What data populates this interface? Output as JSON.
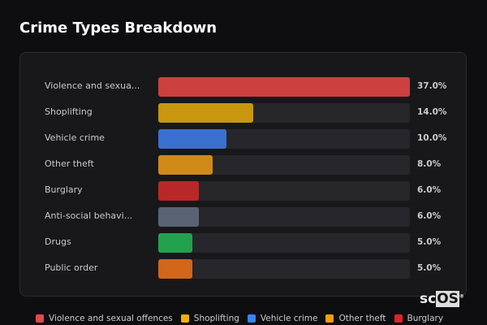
{
  "chart_data": {
    "type": "bar",
    "orientation": "horizontal",
    "title": "Crime Types Breakdown",
    "categories": [
      "Violence and sexua...",
      "Shoplifting",
      "Vehicle crime",
      "Other theft",
      "Burglary",
      "Anti-social behavi...",
      "Drugs",
      "Public order"
    ],
    "values": [
      37.0,
      14.0,
      10.0,
      8.0,
      6.0,
      6.0,
      5.0,
      5.0
    ],
    "value_labels": [
      "37.0%",
      "14.0%",
      "10.0%",
      "8.0%",
      "6.0%",
      "6.0%",
      "5.0%",
      "5.0%"
    ],
    "colors": [
      "#cc4040",
      "#c8960f",
      "#3a70d0",
      "#d08a18",
      "#b82828",
      "#5a6373",
      "#22a24f",
      "#d2661a"
    ],
    "xlim": [
      0,
      37
    ],
    "unit": "%",
    "legend": [
      {
        "label": "Violence and sexual offences",
        "color": "#e5484d"
      },
      {
        "label": "Shoplifting",
        "color": "#eab308"
      },
      {
        "label": "Vehicle crime",
        "color": "#3b82f6"
      },
      {
        "label": "Other theft",
        "color": "#f59e0b"
      },
      {
        "label": "Burglary",
        "color": "#dc2626"
      }
    ],
    "legend_position": "bottom"
  },
  "logo": {
    "text1": "sc",
    "text2": "OS",
    "mark": "®"
  }
}
